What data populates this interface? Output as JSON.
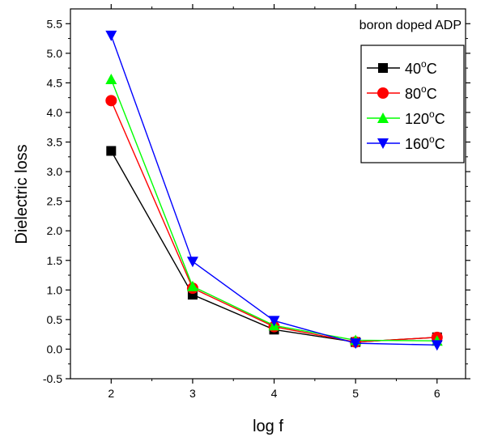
{
  "chart_data": {
    "type": "line",
    "xlabel": "log f",
    "ylabel": "Dielectric loss",
    "annotation": "boron doped ADP",
    "xlim": [
      1.5,
      6.35
    ],
    "ylim": [
      -0.5,
      5.75
    ],
    "xticks": [
      2,
      3,
      4,
      5,
      6
    ],
    "yticks": [
      -0.5,
      0.0,
      0.5,
      1.0,
      1.5,
      2.0,
      2.5,
      3.0,
      3.5,
      4.0,
      4.5,
      5.0,
      5.5
    ],
    "ytick_labels": [
      "-0.5",
      "0.0",
      "0.5",
      "1.0",
      "1.5",
      "2.0",
      "2.5",
      "3.0",
      "3.5",
      "4.0",
      "4.5",
      "5.0",
      "5.5"
    ],
    "x": [
      2,
      3,
      4,
      5,
      6
    ],
    "legend_position": "top-right",
    "grid": false,
    "series": [
      {
        "name": "40",
        "unit": "°C",
        "unit_sup": "o",
        "unit_letter": "C",
        "marker": "square",
        "color": "#000000",
        "values": [
          3.35,
          0.92,
          0.33,
          0.12,
          0.2
        ]
      },
      {
        "name": "80",
        "unit": "°C",
        "unit_sup": "o",
        "unit_letter": "C",
        "marker": "circle",
        "color": "#ff0000",
        "values": [
          4.2,
          1.03,
          0.38,
          0.12,
          0.2
        ]
      },
      {
        "name": "120",
        "unit": "°C",
        "unit_sup": "o",
        "unit_letter": "C",
        "marker": "triangle-up",
        "color": "#00ff00",
        "values": [
          4.56,
          1.06,
          0.4,
          0.15,
          0.14
        ]
      },
      {
        "name": "160",
        "unit": "°C",
        "unit_sup": "o",
        "unit_letter": "C",
        "marker": "triangle-down",
        "color": "#0000ff",
        "values": [
          5.3,
          1.48,
          0.48,
          0.1,
          0.07
        ]
      }
    ]
  }
}
